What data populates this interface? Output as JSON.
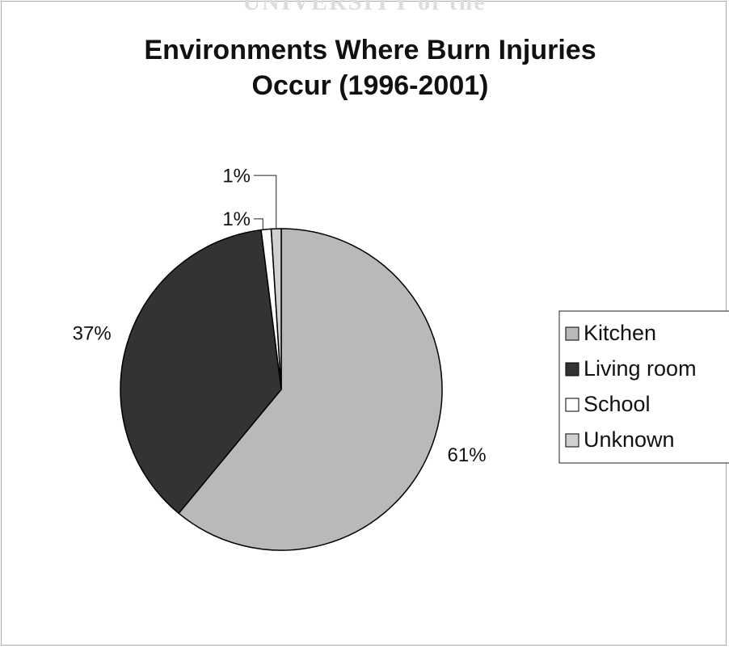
{
  "watermark": "UNIVERSITY of the",
  "chart_data": {
    "type": "pie",
    "title": "Environments Where Burn Injuries Occur (1996-2001)",
    "categories": [
      "Kitchen",
      "Living room",
      "School",
      "Unknown"
    ],
    "values": [
      61,
      37,
      1,
      1
    ],
    "value_labels": [
      "61%",
      "37%",
      "1%",
      "1%"
    ],
    "colors": [
      "#b9b9b9",
      "#333333",
      "#ffffff",
      "#d0d0d0"
    ],
    "legend": "right"
  }
}
